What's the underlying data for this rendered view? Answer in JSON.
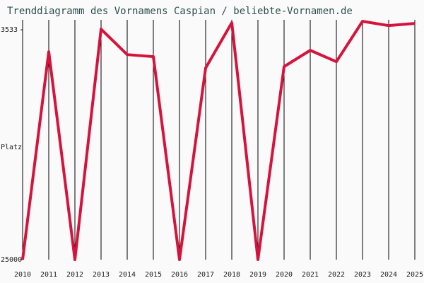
{
  "chart_data": {
    "type": "line",
    "title": "Trenddiagramm des Vornamens Caspian / beliebte-Vornamen.de",
    "y_label": "Platz",
    "categories": [
      "2010",
      "2011",
      "2012",
      "2013",
      "2014",
      "2015",
      "2016",
      "2017",
      "2018",
      "2019",
      "2020",
      "2021",
      "2022",
      "2023",
      "2024",
      "2025"
    ],
    "series": [
      {
        "name": "Caspian",
        "color": "#d4143c",
        "values": [
          25000,
          5580,
          25000,
          3470,
          5850,
          6040,
          25000,
          7100,
          2870,
          25000,
          6970,
          5450,
          6510,
          2740,
          3140,
          2940
        ]
      }
    ],
    "ylim": [
      25000,
      2600
    ],
    "yticks": [
      3533,
      25000
    ],
    "grid": true
  }
}
